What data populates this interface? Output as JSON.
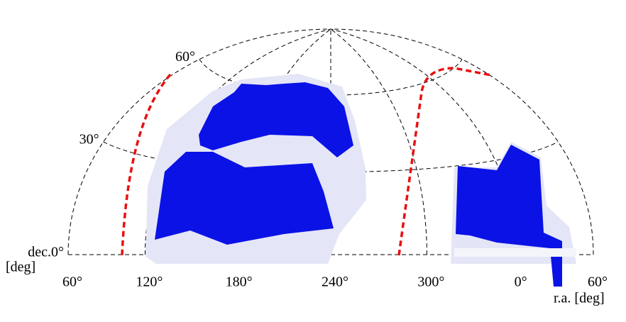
{
  "axes": {
    "ra_ticks": [
      {
        "value": 60,
        "label": "60°"
      },
      {
        "value": 120,
        "label": "120°"
      },
      {
        "value": 180,
        "label": "180°"
      },
      {
        "value": 240,
        "label": "240°"
      },
      {
        "value": 300,
        "label": "300°"
      },
      {
        "value": 360,
        "label": "0°"
      },
      {
        "value": 420,
        "label": "60°"
      }
    ],
    "dec_ticks": [
      {
        "value": 0,
        "label": "dec.0°"
      },
      {
        "value": 30,
        "label": "30°"
      },
      {
        "value": 60,
        "label": "60°"
      }
    ],
    "dec_unit": "[deg]",
    "ra_label": "r.a. [deg]"
  }
}
